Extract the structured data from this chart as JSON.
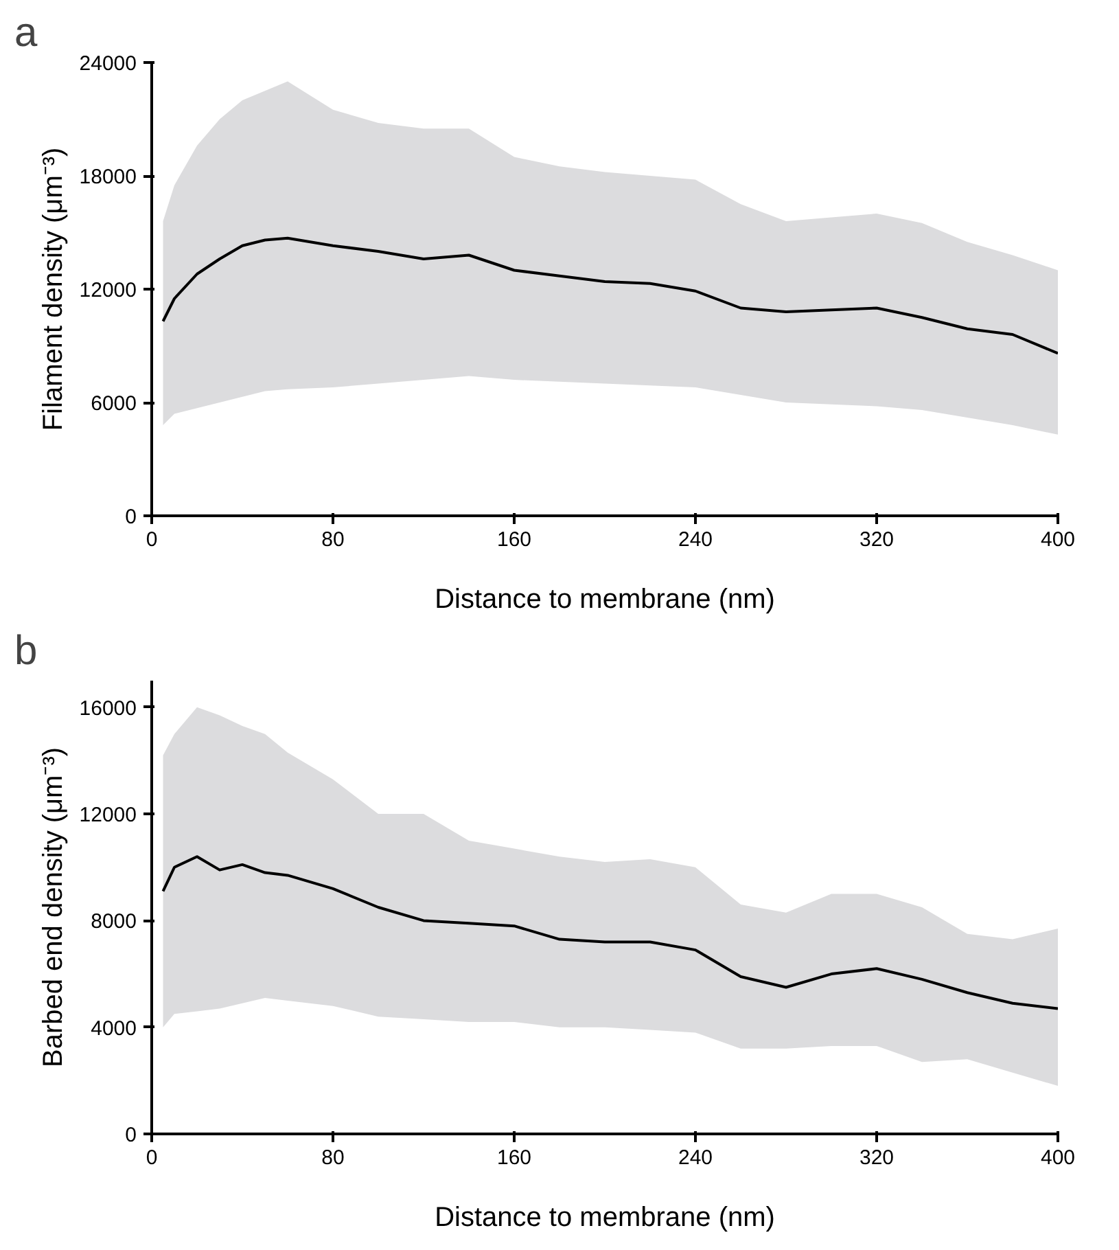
{
  "chart_data": [
    {
      "type": "line",
      "title": "a",
      "xlabel": "Distance to membrane (nm)",
      "ylabel": "Filament density (μm⁻³)",
      "x": [
        5,
        10,
        20,
        30,
        40,
        50,
        60,
        80,
        100,
        120,
        140,
        160,
        180,
        200,
        220,
        240,
        260,
        280,
        300,
        320,
        340,
        360,
        380,
        400
      ],
      "series": [
        {
          "color": "#000000",
          "values": [
            10300,
            11500,
            12800,
            13600,
            14300,
            14600,
            14700,
            14300,
            14000,
            13600,
            13800,
            13000,
            12700,
            12400,
            12300,
            11900,
            11000,
            10800,
            10900,
            11000,
            10500,
            9900,
            9600,
            8600
          ],
          "upper": [
            15600,
            17500,
            19600,
            21000,
            22000,
            22500,
            23000,
            21500,
            20800,
            20500,
            20500,
            19000,
            18500,
            18200,
            18000,
            17800,
            16500,
            15600,
            15800,
            16000,
            15500,
            14500,
            13800,
            13000
          ],
          "lower": [
            4800,
            5400,
            5700,
            6000,
            6300,
            6600,
            6700,
            6800,
            7000,
            7200,
            7400,
            7200,
            7100,
            7000,
            6900,
            6800,
            6400,
            6000,
            5900,
            5800,
            5600,
            5200,
            4800,
            4300
          ]
        }
      ],
      "xlim": [
        0,
        400
      ],
      "xticks": [
        0,
        80,
        160,
        240,
        320,
        400
      ],
      "ylim": [
        0,
        24000
      ],
      "yticks": [
        0,
        6000,
        12000,
        18000,
        24000
      ],
      "grid": false
    },
    {
      "type": "line",
      "title": "b",
      "xlabel": "Distance to membrane (nm)",
      "ylabel": "Barbed end density (μm⁻³)",
      "x": [
        5,
        10,
        20,
        30,
        40,
        50,
        60,
        80,
        100,
        120,
        140,
        160,
        180,
        200,
        220,
        240,
        260,
        280,
        300,
        320,
        340,
        360,
        380,
        400
      ],
      "series": [
        {
          "color": "#000000",
          "values": [
            9100,
            10000,
            10400,
            9900,
            10100,
            9800,
            9700,
            9200,
            8500,
            8000,
            7900,
            7800,
            7300,
            7200,
            7200,
            6900,
            5900,
            5500,
            6000,
            6200,
            5800,
            5300,
            4900,
            4700
          ],
          "upper": [
            14200,
            15000,
            16000,
            15700,
            15300,
            15000,
            14300,
            13300,
            12000,
            12000,
            11000,
            10700,
            10400,
            10200,
            10300,
            10000,
            8600,
            8300,
            9000,
            9000,
            8500,
            7500,
            7300,
            7700
          ],
          "lower": [
            4000,
            4500,
            4600,
            4700,
            4900,
            5100,
            5000,
            4800,
            4400,
            4300,
            4200,
            4200,
            4000,
            4000,
            3900,
            3800,
            3200,
            3200,
            3300,
            3300,
            2700,
            2800,
            2300,
            1800
          ]
        }
      ],
      "xlim": [
        0,
        400
      ],
      "xticks": [
        0,
        80,
        160,
        240,
        320,
        400
      ],
      "ylim": [
        0,
        17000
      ],
      "yticks": [
        0,
        4000,
        8000,
        12000,
        16000
      ],
      "grid": false
    }
  ]
}
